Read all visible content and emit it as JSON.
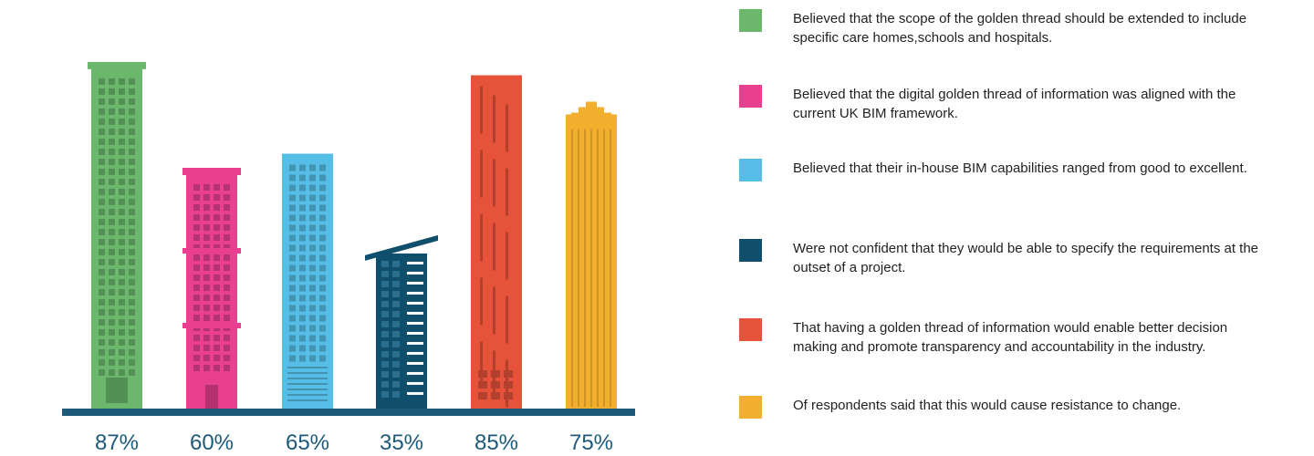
{
  "chart_data": {
    "type": "bar",
    "categories": [
      "87%",
      "60%",
      "65%",
      "35%",
      "85%",
      "75%"
    ],
    "values": [
      87,
      60,
      65,
      35,
      85,
      75
    ],
    "value_labels": [
      "87%",
      "60%",
      "65%",
      "35%",
      "85%",
      "75%"
    ],
    "colors": [
      "#6bb86d",
      "#e8408f",
      "#56bde6",
      "#0f4f6c",
      "#e6523a",
      "#f2ae2d"
    ],
    "ylim": [
      0,
      100
    ],
    "grid": false,
    "legend_position": "right"
  },
  "legend": [
    {
      "text": "Believed that the scope of the golden thread should be extended to include specific care homes,schools and hospitals.",
      "color": "#6bb86d"
    },
    {
      "text": "Believed that the digital golden thread of information was aligned with the current UK BIM framework.",
      "color": "#e8408f"
    },
    {
      "text": "Believed that their in-house BIM capabilities ranged from good to excellent.",
      "color": "#56bde6"
    },
    {
      "text": "Were not confident that they would be able to specify the requirements at the outset of a project.",
      "color": "#0f4f6c"
    },
    {
      "text": "That having a golden thread of information would enable better decision making and promote transparency and accountability in the industry.",
      "color": "#e6523a"
    },
    {
      "text": "Of respondents said that this would cause resistance to change.",
      "color": "#f2ae2d"
    }
  ],
  "ground_color": "#1d5a7a"
}
